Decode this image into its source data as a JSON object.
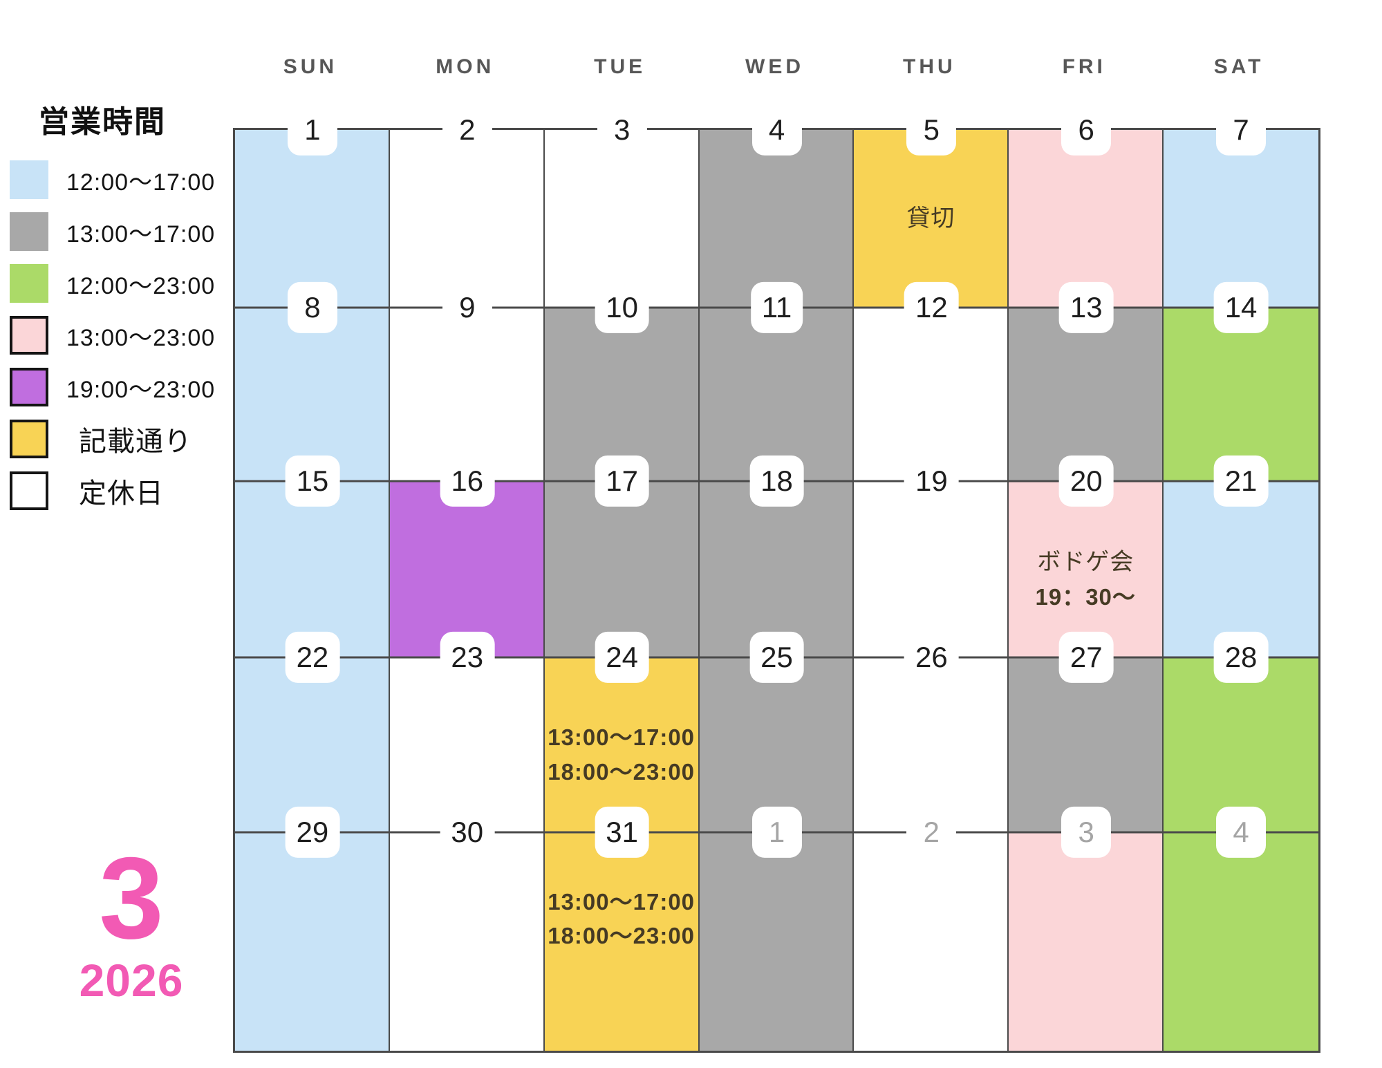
{
  "legend": {
    "title": "営業時間",
    "items": [
      {
        "label": "12:00〜17:00",
        "color": "blue",
        "bordered": false
      },
      {
        "label": "13:00〜17:00",
        "color": "gray",
        "bordered": false
      },
      {
        "label": "12:00〜23:00",
        "color": "green",
        "bordered": false
      },
      {
        "label": "13:00〜23:00",
        "color": "pink",
        "bordered": true
      },
      {
        "label": "19:00〜23:00",
        "color": "purple",
        "bordered": true
      },
      {
        "label": "記載通り",
        "color": "yellow",
        "bordered": true
      },
      {
        "label": "定休日",
        "color": "white",
        "bordered": true
      }
    ]
  },
  "calendar": {
    "weekdays": [
      "SUN",
      "MON",
      "TUE",
      "WED",
      "THU",
      "FRI",
      "SAT"
    ],
    "month": {
      "number": "3",
      "year": "2026"
    },
    "weeks": [
      [
        {
          "day": "1",
          "color": "blue",
          "next_month": false,
          "notes": []
        },
        {
          "day": "2",
          "color": "white",
          "next_month": false,
          "notes": []
        },
        {
          "day": "3",
          "color": "white",
          "next_month": false,
          "notes": []
        },
        {
          "day": "4",
          "color": "gray",
          "next_month": false,
          "notes": []
        },
        {
          "day": "5",
          "color": "yellow",
          "next_month": false,
          "notes": [
            "貸切"
          ]
        },
        {
          "day": "6",
          "color": "pink",
          "next_month": false,
          "notes": []
        },
        {
          "day": "7",
          "color": "blue",
          "next_month": false,
          "notes": []
        }
      ],
      [
        {
          "day": "8",
          "color": "blue",
          "next_month": false,
          "notes": []
        },
        {
          "day": "9",
          "color": "white",
          "next_month": false,
          "notes": []
        },
        {
          "day": "10",
          "color": "gray",
          "next_month": false,
          "notes": []
        },
        {
          "day": "11",
          "color": "gray",
          "next_month": false,
          "notes": []
        },
        {
          "day": "12",
          "color": "white",
          "next_month": false,
          "notes": []
        },
        {
          "day": "13",
          "color": "gray",
          "next_month": false,
          "notes": []
        },
        {
          "day": "14",
          "color": "green",
          "next_month": false,
          "notes": []
        }
      ],
      [
        {
          "day": "15",
          "color": "blue",
          "next_month": false,
          "notes": []
        },
        {
          "day": "16",
          "color": "purple",
          "next_month": false,
          "notes": []
        },
        {
          "day": "17",
          "color": "gray",
          "next_month": false,
          "notes": []
        },
        {
          "day": "18",
          "color": "gray",
          "next_month": false,
          "notes": []
        },
        {
          "day": "19",
          "color": "white",
          "next_month": false,
          "notes": []
        },
        {
          "day": "20",
          "color": "pink",
          "next_month": false,
          "notes": [
            "ボドゲ会",
            "19：30〜"
          ]
        },
        {
          "day": "21",
          "color": "blue",
          "next_month": false,
          "notes": []
        }
      ],
      [
        {
          "day": "22",
          "color": "blue",
          "next_month": false,
          "notes": []
        },
        {
          "day": "23",
          "color": "white",
          "next_month": false,
          "notes": []
        },
        {
          "day": "24",
          "color": "yellow",
          "next_month": false,
          "notes": [
            "13:00〜17:00",
            "18:00〜23:00"
          ]
        },
        {
          "day": "25",
          "color": "gray",
          "next_month": false,
          "notes": []
        },
        {
          "day": "26",
          "color": "white",
          "next_month": false,
          "notes": []
        },
        {
          "day": "27",
          "color": "gray",
          "next_month": false,
          "notes": []
        },
        {
          "day": "28",
          "color": "green",
          "next_month": false,
          "notes": []
        }
      ],
      [
        {
          "day": "29",
          "color": "blue",
          "next_month": false,
          "notes": []
        },
        {
          "day": "30",
          "color": "white",
          "next_month": false,
          "notes": []
        },
        {
          "day": "31",
          "color": "yellow",
          "next_month": false,
          "notes": [
            "13:00〜17:00",
            "18:00〜23:00"
          ]
        },
        {
          "day": "1",
          "color": "gray",
          "next_month": true,
          "notes": []
        },
        {
          "day": "2",
          "color": "white",
          "next_month": true,
          "notes": []
        },
        {
          "day": "3",
          "color": "pink",
          "next_month": true,
          "notes": []
        },
        {
          "day": "4",
          "color": "green",
          "next_month": true,
          "notes": []
        }
      ]
    ]
  },
  "colors": {
    "blue": "#c8e3f7",
    "gray": "#a8a8a8",
    "green": "#abda68",
    "pink": "#fbd6d8",
    "purple": "#c06edf",
    "yellow": "#f8d355",
    "white": "#ffffff",
    "accent_month": "#f25ab4",
    "grid_line": "#4a4a4a",
    "note_text": "#463b24"
  }
}
